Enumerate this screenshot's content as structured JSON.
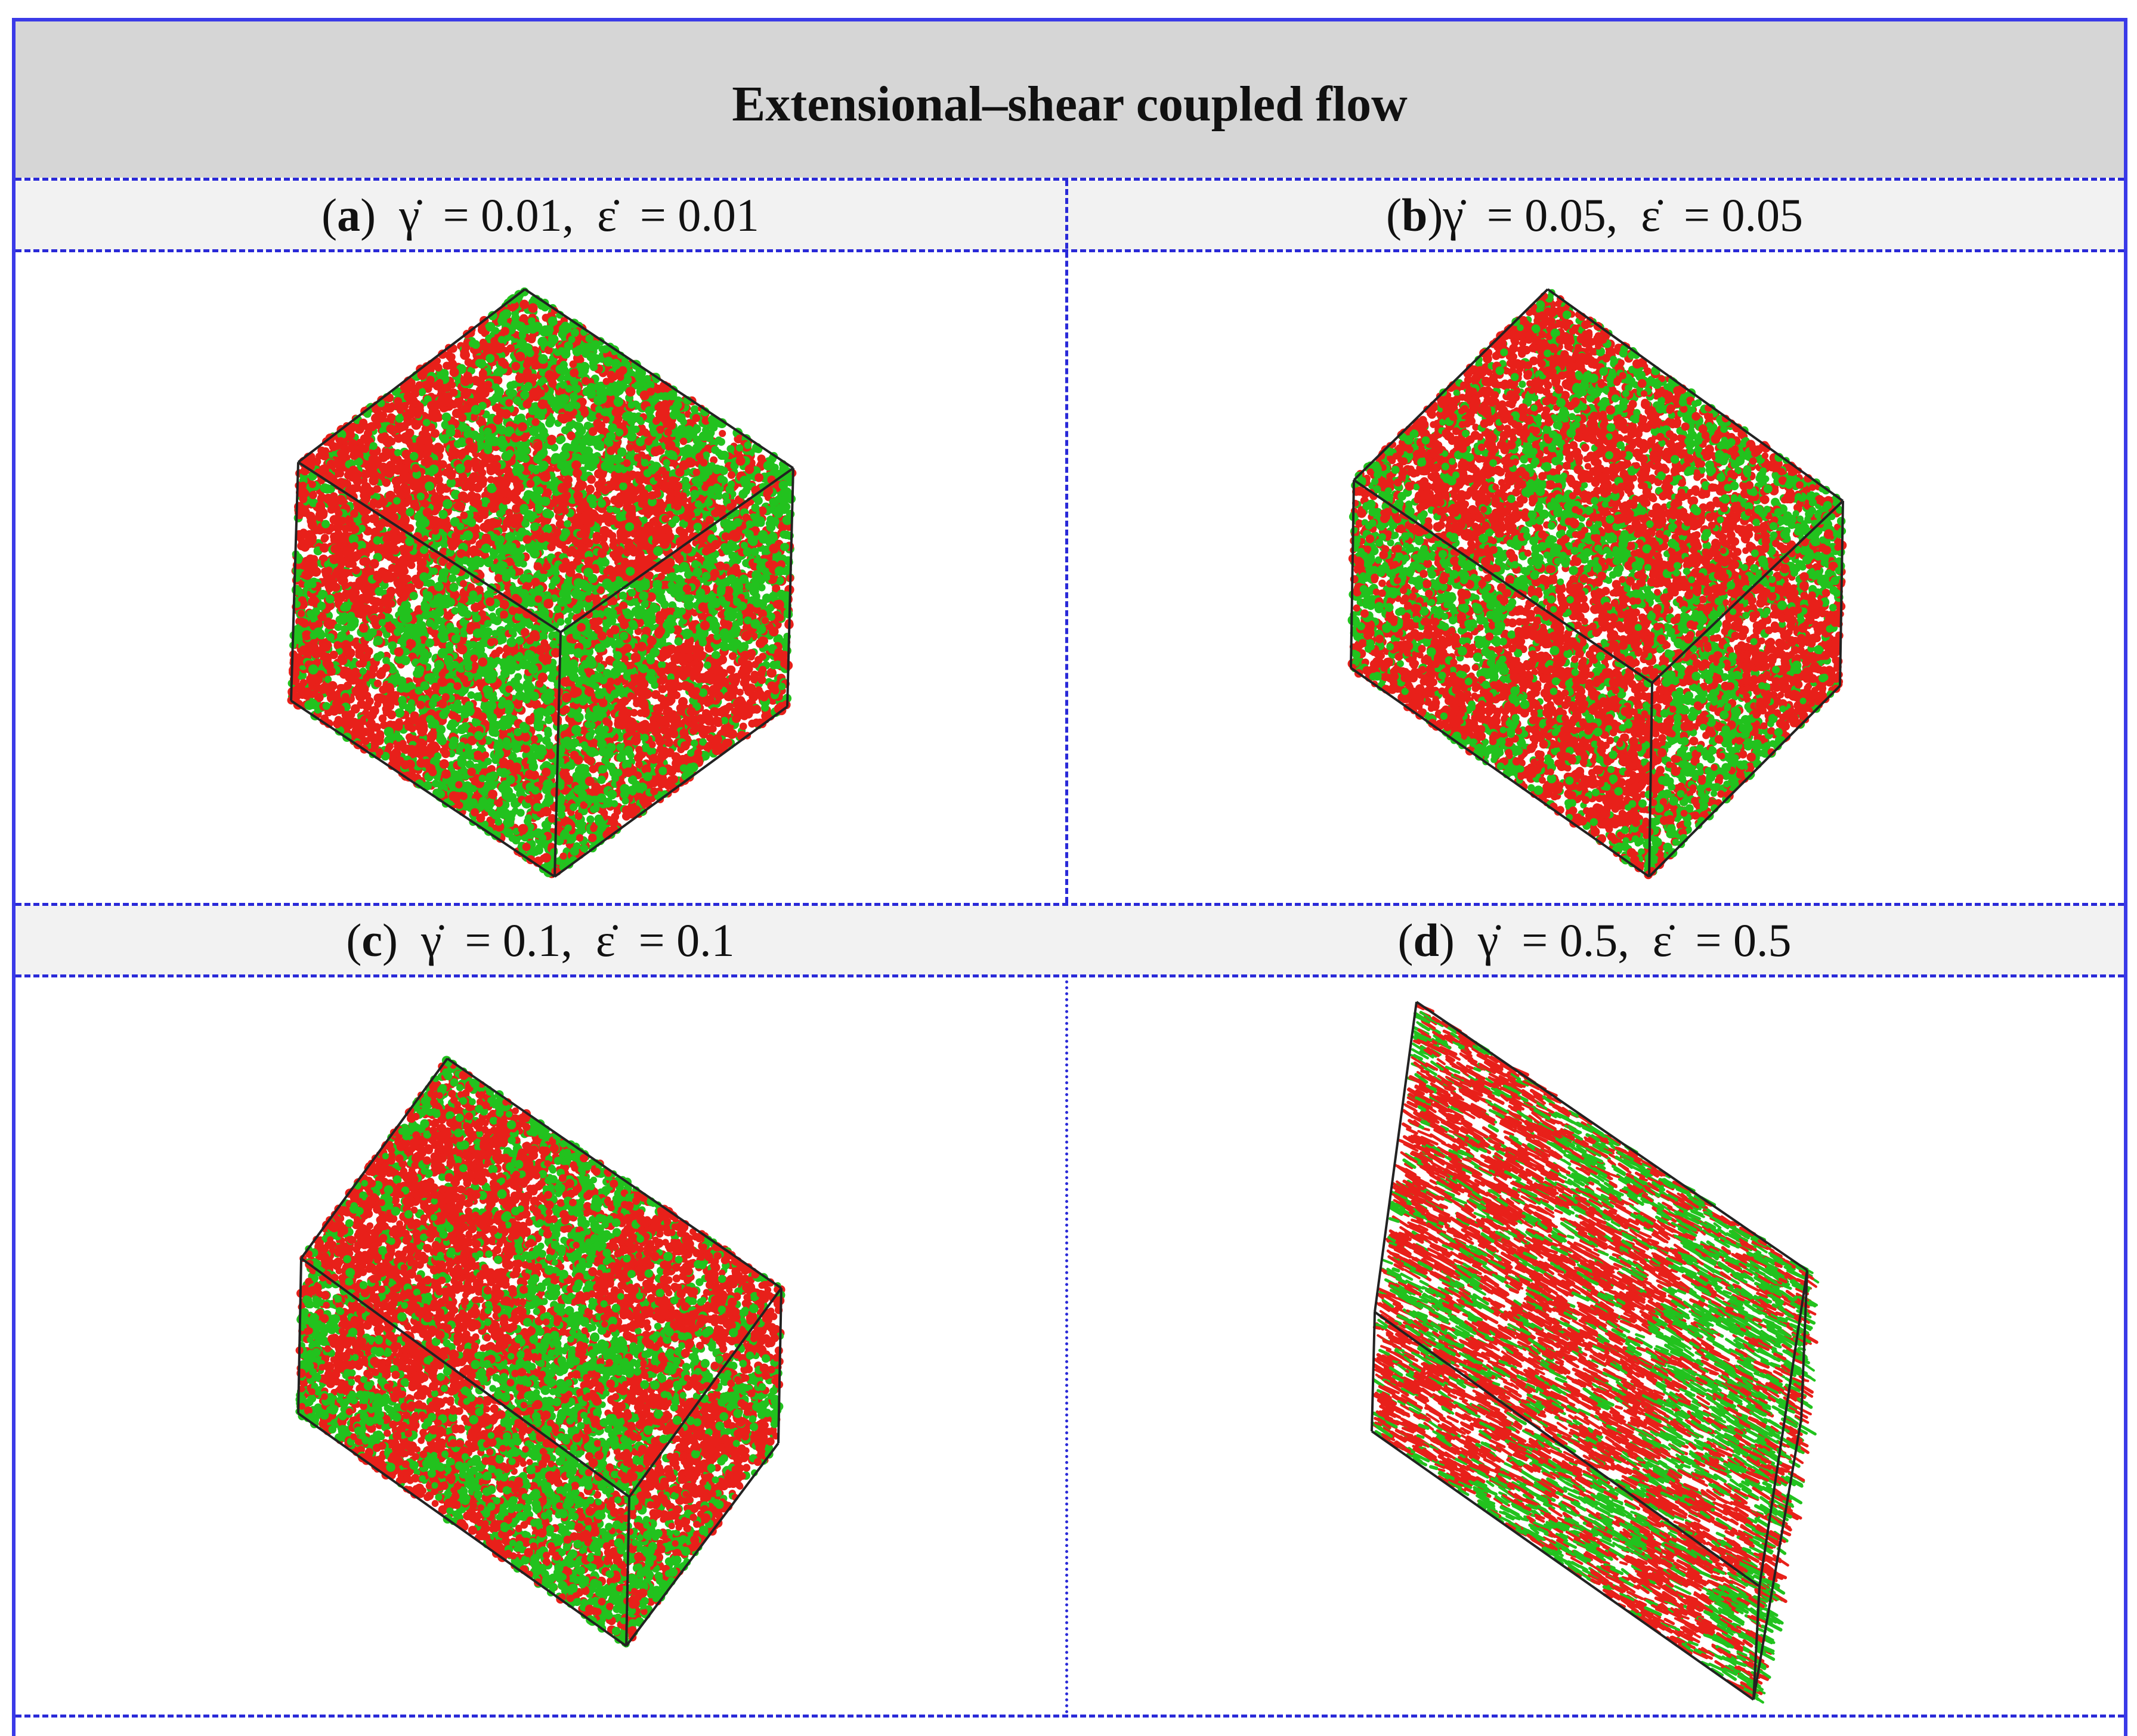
{
  "figure_title": "Extensional–shear coupled flow",
  "panels": [
    {
      "letter": "a",
      "open": "(",
      "close": ")",
      "label_rest": "  γ̇  = 0.01,  ε̇  = 0.01"
    },
    {
      "letter": "b",
      "open": "(",
      "close": ")",
      "label_rest": "γ̇  = 0.05,  ε̇  = 0.05"
    },
    {
      "letter": "c",
      "open": "(",
      "close": ")",
      "label_rest": "  γ̇  = 0.1,  ε̇  = 0.1"
    },
    {
      "letter": "d",
      "open": "(",
      "close": ")",
      "label_rest": "  γ̇  = 0.5,  ε̇  = 0.5"
    }
  ],
  "colors": {
    "border": "#3a3ae8",
    "divider": "#2a2ad8",
    "title_band": "#d6d6d6",
    "label_band": "#f2f2f2",
    "bead_green": "#22c21e",
    "bead_red": "#e8201a",
    "box_edge": "#222222"
  }
}
